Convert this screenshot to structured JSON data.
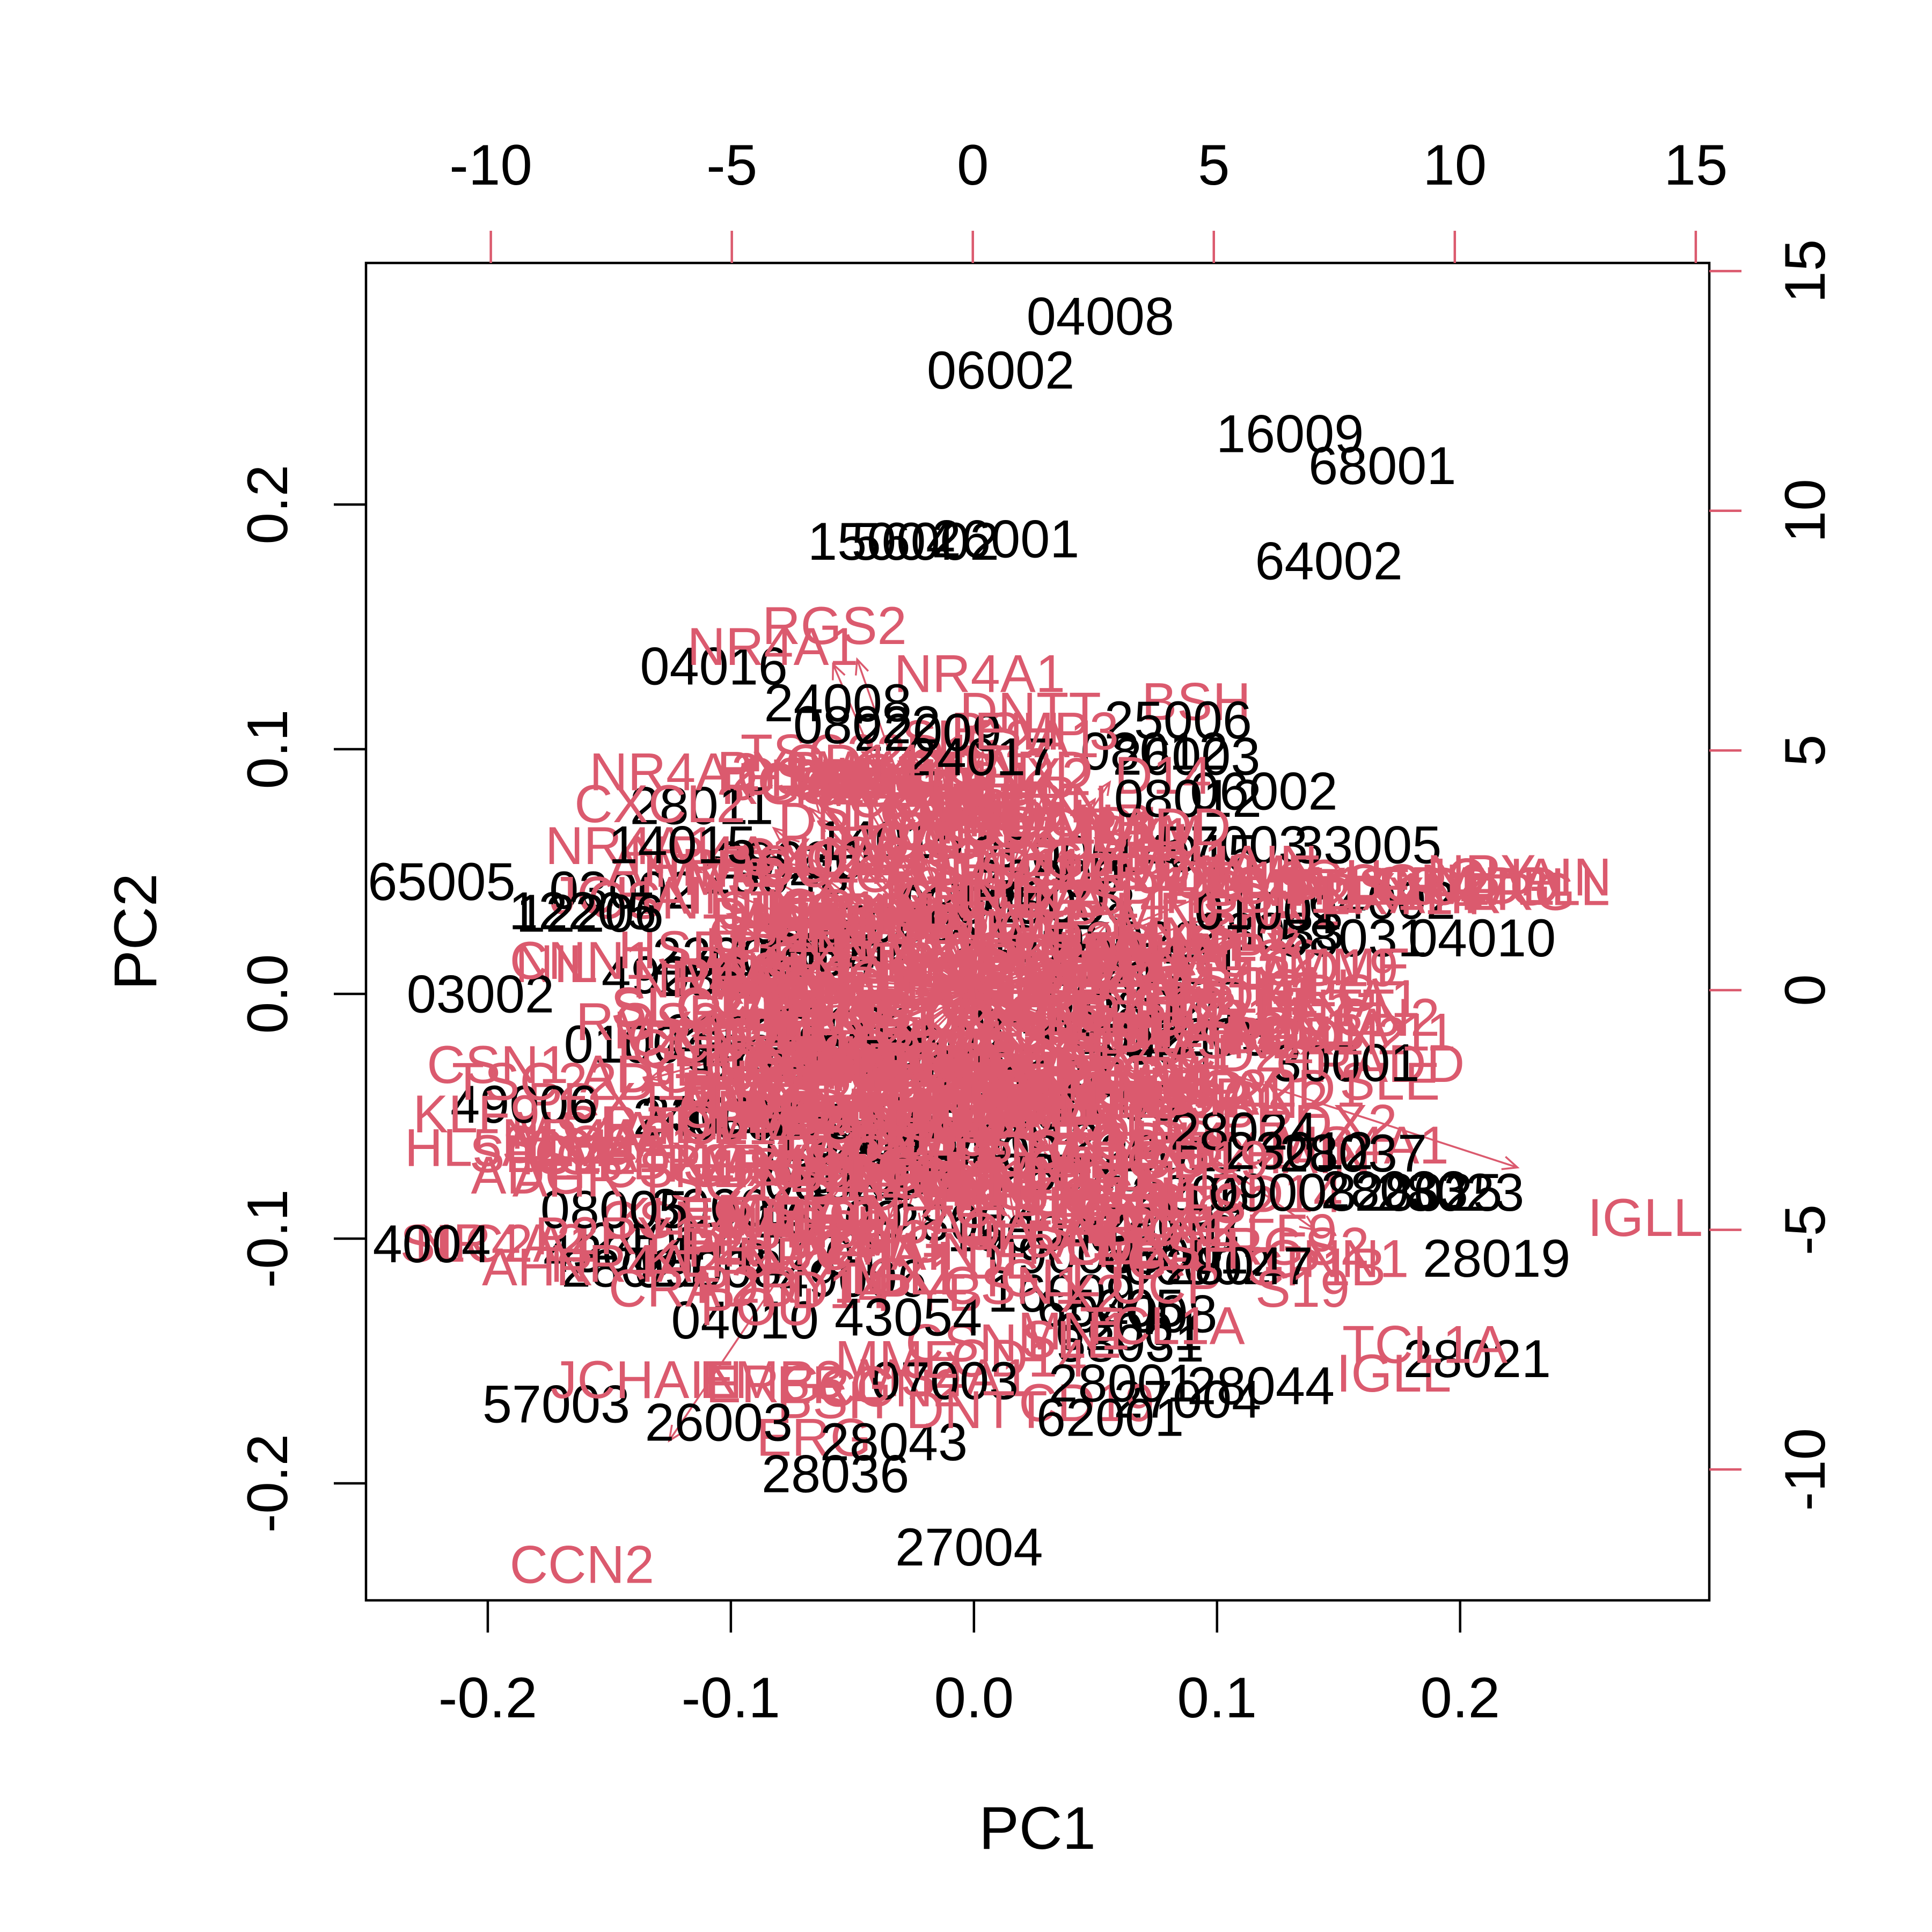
{
  "figure": {
    "background": "#ffffff",
    "score_label_color": "#000000",
    "loading_color": "#db5a6e",
    "axis_line_color": "#000000"
  },
  "chart_data": {
    "type": "scatter",
    "subtype": "pca-biplot",
    "title": "",
    "xlabel": "PC1",
    "ylabel": "PC2",
    "grid": false,
    "legend": "none",
    "axes": {
      "bottom": {
        "side": "bottom",
        "color": "#000000",
        "tick_color": "#000000",
        "range": [
          -0.2501,
          0.3025
        ],
        "ticks": [
          -0.2,
          -0.1,
          0.0,
          0.1,
          0.2
        ],
        "tick_labels": [
          "-0.2",
          "-0.1",
          "0.0",
          "0.1",
          "0.2"
        ]
      },
      "left": {
        "side": "left",
        "color": "#000000",
        "tick_color": "#000000",
        "range": [
          -0.2478,
          0.2987
        ],
        "ticks": [
          0.2,
          0.1,
          0.0,
          -0.1,
          -0.2
        ],
        "tick_labels": [
          "0.2",
          "0.1",
          "0.0",
          "-0.1",
          "-0.2"
        ]
      },
      "top": {
        "side": "top",
        "color": "#000000",
        "tick_color": "#db5a6e",
        "range": [
          -12.59,
          15.28
        ],
        "ticks": [
          -10,
          -5,
          0,
          5,
          10,
          15
        ],
        "tick_labels": [
          "-10",
          "-5",
          "0",
          "5",
          "10",
          "15"
        ]
      },
      "right": {
        "side": "right",
        "color": "#000000",
        "tick_color": "#db5a6e",
        "range": [
          -12.73,
          15.17
        ],
        "ticks": [
          15,
          10,
          5,
          0,
          -5,
          -10
        ],
        "tick_labels": [
          "15",
          "10",
          "5",
          "0",
          "-5",
          "-10"
        ]
      }
    },
    "series": [
      {
        "name": "sample-scores",
        "color": "#000000",
        "axis": "bottom-left"
      },
      {
        "name": "gene-loadings",
        "color": "#db5a6e",
        "axis": "top-right"
      }
    ],
    "samples": [
      {
        "label": "04008",
        "pc1": 0.052,
        "pc2": 0.277
      },
      {
        "label": "06002",
        "pc1": 0.011,
        "pc2": 0.255
      },
      {
        "label": "16009",
        "pc1": 0.13,
        "pc2": 0.229
      },
      {
        "label": "68001",
        "pc1": 0.168,
        "pc2": 0.216
      },
      {
        "label": "64002",
        "pc1": 0.146,
        "pc2": 0.177
      },
      {
        "label": "15004",
        "pc1": -0.038,
        "pc2": 0.185
      },
      {
        "label": "56002",
        "pc1": -0.02,
        "pc2": 0.185
      },
      {
        "label": "26001",
        "pc1": 0.013,
        "pc2": 0.186
      },
      {
        "label": "04016",
        "pc1": -0.107,
        "pc2": 0.134
      },
      {
        "label": "24008",
        "pc1": -0.056,
        "pc2": 0.119
      },
      {
        "label": "08022",
        "pc1": -0.044,
        "pc2": 0.11
      },
      {
        "label": "22009",
        "pc1": -0.019,
        "pc2": 0.107
      },
      {
        "label": "24017",
        "pc1": 0.003,
        "pc2": 0.097
      },
      {
        "label": "25006",
        "pc1": 0.084,
        "pc2": 0.112
      },
      {
        "label": "08012",
        "pc1": 0.088,
        "pc2": 0.08
      },
      {
        "label": "28011",
        "pc1": -0.112,
        "pc2": 0.077
      },
      {
        "label": "14015",
        "pc1": -0.12,
        "pc2": 0.061
      },
      {
        "label": "65005",
        "pc1": -0.219,
        "pc2": 0.046
      },
      {
        "label": "12205",
        "pc1": -0.161,
        "pc2": 0.034
      },
      {
        "label": "12206",
        "pc1": -0.158,
        "pc2": 0.033
      },
      {
        "label": "57003",
        "pc1": 0.107,
        "pc2": 0.061
      },
      {
        "label": "33005",
        "pc1": 0.162,
        "pc2": 0.061
      },
      {
        "label": "01001",
        "pc1": 0.121,
        "pc2": 0.034
      },
      {
        "label": "58031",
        "pc1": 0.156,
        "pc2": 0.023
      },
      {
        "label": "04010",
        "pc1": 0.209,
        "pc2": 0.023
      },
      {
        "label": "03002",
        "pc1": -0.203,
        "pc2": 0.0
      },
      {
        "label": "30001",
        "pc1": 0.153,
        "pc2": -0.028
      },
      {
        "label": "28024",
        "pc1": 0.111,
        "pc2": -0.056
      },
      {
        "label": "23012",
        "pc1": 0.134,
        "pc2": -0.064
      },
      {
        "label": "28037",
        "pc1": 0.156,
        "pc2": -0.065
      },
      {
        "label": "09008",
        "pc1": 0.127,
        "pc2": -0.081
      },
      {
        "label": "28033",
        "pc1": 0.173,
        "pc2": -0.08
      },
      {
        "label": "28025",
        "pc1": 0.187,
        "pc2": -0.081
      },
      {
        "label": "28023",
        "pc1": 0.196,
        "pc2": -0.081
      },
      {
        "label": "49006",
        "pc1": -0.185,
        "pc2": -0.045
      },
      {
        "label": "08005",
        "pc1": -0.148,
        "pc2": -0.088
      },
      {
        "label": "4004",
        "pc1": -0.223,
        "pc2": -0.102
      },
      {
        "label": "28047",
        "pc1": 0.109,
        "pc2": -0.111
      },
      {
        "label": "28019",
        "pc1": 0.215,
        "pc2": -0.108
      },
      {
        "label": "43054",
        "pc1": -0.027,
        "pc2": -0.132
      },
      {
        "label": "26003",
        "pc1": -0.105,
        "pc2": -0.175
      },
      {
        "label": "28043",
        "pc1": -0.033,
        "pc2": -0.183
      },
      {
        "label": "28036",
        "pc1": -0.057,
        "pc2": -0.196
      },
      {
        "label": "27004",
        "pc1": -0.002,
        "pc2": -0.226
      },
      {
        "label": "62001",
        "pc1": 0.056,
        "pc2": -0.173
      },
      {
        "label": "07003",
        "pc1": -0.012,
        "pc2": -0.158
      },
      {
        "label": "28001",
        "pc1": 0.061,
        "pc2": -0.159
      },
      {
        "label": "28044",
        "pc1": 0.118,
        "pc2": -0.16
      },
      {
        "label": "28021",
        "pc1": 0.207,
        "pc2": -0.149
      }
    ],
    "loadings": [
      {
        "label": "RGS2",
        "pc1": -2.87,
        "pc2": 7.61
      },
      {
        "label": "NR4A1",
        "pc1": -4.15,
        "pc2": 7.17
      },
      {
        "label": "NR4A2",
        "pc1": -6.18,
        "pc2": 4.56
      },
      {
        "label": "CXCL2",
        "pc1": -6.49,
        "pc2": 3.89
      },
      {
        "label": "CSN1",
        "pc1": -3.43,
        "pc2": 4.47
      },
      {
        "label": "CD14",
        "pc1": -2.48,
        "pc2": 4.74
      },
      {
        "label": "EMP3",
        "pc1": 1.53,
        "pc2": 5.41
      },
      {
        "label": "MX1",
        "pc1": 3.42,
        "pc2": 3.21
      },
      {
        "label": "PRDX2",
        "pc1": 4.03,
        "pc2": 2.46
      },
      {
        "label": "CNN1",
        "pc1": -8.11,
        "pc2": 0.62
      },
      {
        "label": "TSC22D1",
        "pc1": -8.39,
        "pc2": -1.9
      },
      {
        "label": "KLF9",
        "pc1": -10.3,
        "pc2": -2.58
      },
      {
        "label": "SLC2A1",
        "pc1": -7.72,
        "pc2": -3.21
      },
      {
        "label": "AHR",
        "pc1": -8.39,
        "pc2": -3.92
      },
      {
        "label": "P2RY14",
        "pc1": -7.05,
        "pc2": -5.12
      },
      {
        "label": "CRADD",
        "pc1": -5.6,
        "pc2": -6.21
      },
      {
        "label": "JCHAIN",
        "pc1": -6.77,
        "pc2": -8.12
      },
      {
        "label": "ERG",
        "pc1": -2.88,
        "pc2": -8.23
      },
      {
        "label": "MME",
        "pc1": -1.58,
        "pc2": -7.7
      },
      {
        "label": "DNTT",
        "pc1": 0.08,
        "pc2": -8.75
      },
      {
        "label": "CCN2",
        "pc1": -8.11,
        "pc2": -11.98
      },
      {
        "label": "PDX1",
        "pc1": 3.75,
        "pc2": -4.89
      },
      {
        "label": "CD19",
        "pc1": 4.74,
        "pc2": -3.53
      },
      {
        "label": "NPY",
        "pc1": 5.22,
        "pc2": -2.07
      },
      {
        "label": "MS4A1",
        "pc1": 4.75,
        "pc2": -2.21
      },
      {
        "label": "HSBP11",
        "pc1": 7.95,
        "pc2": -0.87
      },
      {
        "label": "IGLL",
        "pc1": 13.95,
        "pc2": -4.74
      },
      {
        "label": "TCL1A",
        "pc1": 9.38,
        "pc2": -7.39
      }
    ],
    "visible_arrow_tips": [
      [
        11.3,
        -3.7
      ],
      [
        7.1,
        -5.0
      ],
      [
        -6.3,
        -9.4
      ],
      [
        -6.7,
        -1.85
      ],
      [
        -2.9,
        6.8
      ],
      [
        -2.4,
        6.9
      ],
      [
        -1.9,
        -6.5
      ]
    ]
  },
  "texture": {
    "note": "dense illegible overplotted label cloud at plot centre, reconstructed deterministically",
    "seed": 7,
    "gene_fragments": [
      "CSN1",
      "CD24",
      "B2M",
      "RAD9",
      "MN1",
      "GP1B",
      "UCP",
      "TWG",
      "HL5A1",
      "POU",
      "IGH",
      "SLE",
      "BSH",
      "OAS",
      "S19",
      "ADG",
      "ROU",
      "LDL",
      "PYB",
      "NIL",
      "M38",
      "D14",
      "C3",
      "X2",
      "CM"
    ],
    "counts": {
      "arrows": 110,
      "pink_core": 335,
      "pink_top_fringe": 18,
      "pink_late": 60,
      "pink_right_band": 16,
      "pink_right_patch": 14,
      "black_filler": 85
    }
  }
}
